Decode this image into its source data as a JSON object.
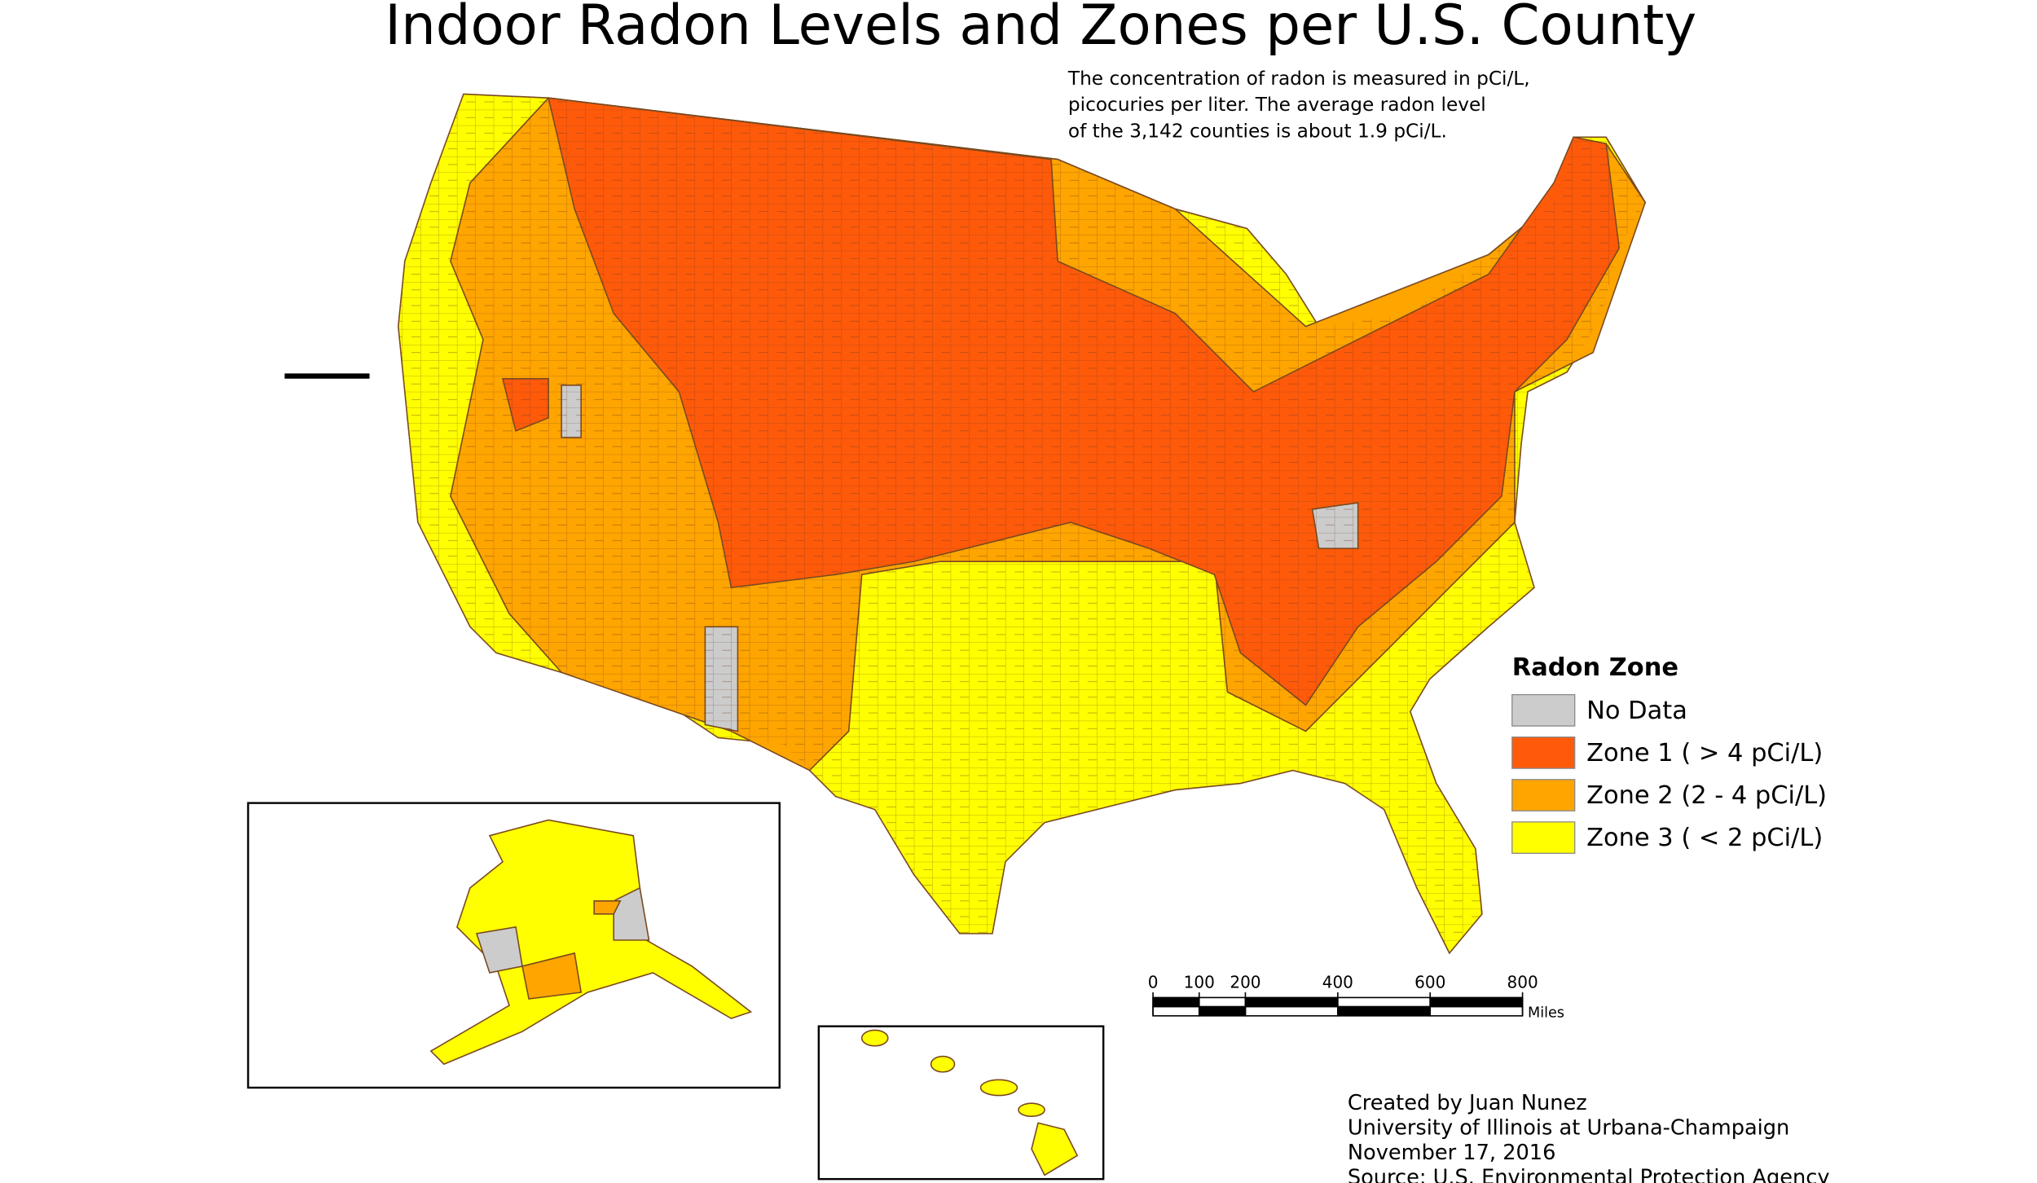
{
  "title": "Indoor Radon Levels and Zones per U.S. County",
  "note": [
    "The concentration of radon is measured in pCi/L,",
    "picocuries per liter. The average radon level",
    "of the 3,142 counties is about 1.9 pCi/L."
  ],
  "legend": {
    "title": "Radon Zone",
    "items": [
      {
        "label": "No Data",
        "color": "#cccccc"
      },
      {
        "label": "Zone 1 ( > 4 pCi/L)",
        "color": "#ff5a0a"
      },
      {
        "label": "Zone 2 (2 - 4 pCi/L)",
        "color": "#ffa500"
      },
      {
        "label": "Zone 3 ( < 2 pCi/L)",
        "color": "#ffff00"
      }
    ]
  },
  "scale_bar": {
    "ticks": [
      0,
      100,
      200,
      400,
      600,
      800
    ],
    "unit": "Miles"
  },
  "credits": [
    "Created by Juan Nunez",
    "University of Illinois at Urbana-Champaign",
    "November 17, 2016",
    "Source: U.S. Environmental Protection Agency"
  ]
}
